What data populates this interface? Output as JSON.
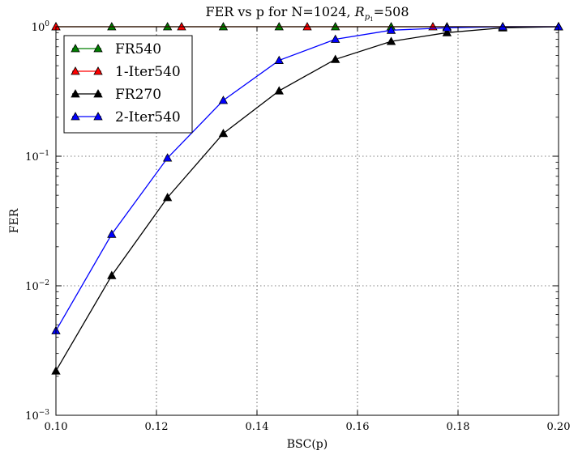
{
  "chart_data": {
    "type": "line",
    "title_main": "FER vs p for N=1024, ",
    "title_math": "R",
    "title_sub": "p",
    "title_subsub": "1",
    "title_tail": "=508",
    "xlabel": "BSC(p)",
    "ylabel": "FER",
    "xscale": "linear",
    "yscale": "log",
    "xlim": [
      0.1,
      0.2
    ],
    "ylim": [
      0.001,
      1
    ],
    "grid": true,
    "legend_position": "top-left",
    "x_ticks": [
      0.1,
      0.12,
      0.14,
      0.16,
      0.18,
      0.2
    ],
    "x_tick_labels": [
      "0.10",
      "0.12",
      "0.14",
      "0.16",
      "0.18",
      "0.20"
    ],
    "y_ticks": [
      0.001,
      0.01,
      0.1,
      1
    ],
    "y_tick_mantissa": [
      "10",
      "10",
      "10",
      "10"
    ],
    "y_tick_exponents": [
      "−3",
      "−2",
      "−1",
      "0"
    ],
    "series": [
      {
        "name": "FR540",
        "color": "#007f00",
        "x": [
          0.1,
          0.1111,
          0.1222,
          0.1333,
          0.1444,
          0.1556,
          0.1667,
          0.1778,
          0.1889,
          0.2
        ],
        "y": [
          1,
          1,
          1,
          1,
          1,
          1,
          1,
          1,
          1,
          1
        ]
      },
      {
        "name": "1-Iter540",
        "color": "#ff0000",
        "x": [
          0.1,
          0.125,
          0.15,
          0.175,
          0.2
        ],
        "y": [
          1,
          1,
          1,
          1,
          1
        ]
      },
      {
        "name": "FR270",
        "color": "#000000",
        "x": [
          0.1,
          0.1111,
          0.1222,
          0.1333,
          0.1444,
          0.1556,
          0.1667,
          0.1778,
          0.1889,
          0.2
        ],
        "y": [
          0.0022,
          0.012,
          0.048,
          0.15,
          0.32,
          0.56,
          0.77,
          0.9,
          0.98,
          1
        ]
      },
      {
        "name": "2-Iter540",
        "color": "#0000ff",
        "x": [
          0.1,
          0.1111,
          0.1222,
          0.1333,
          0.1444,
          0.1556,
          0.1667,
          0.1778,
          0.1889,
          0.2
        ],
        "y": [
          0.0045,
          0.025,
          0.097,
          0.27,
          0.55,
          0.8,
          0.94,
          0.98,
          1,
          1
        ]
      }
    ]
  }
}
